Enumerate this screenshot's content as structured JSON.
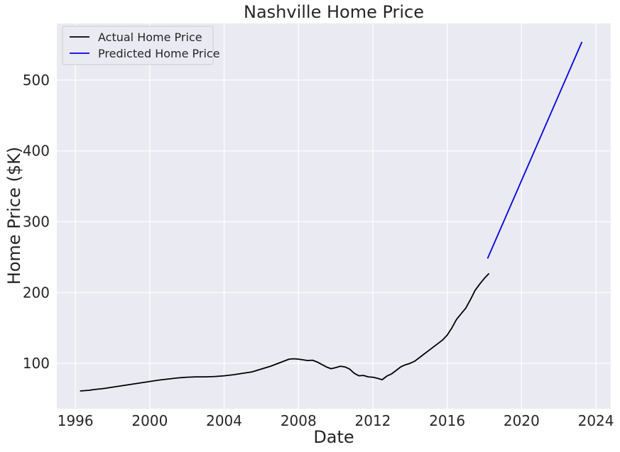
{
  "chart_data": {
    "type": "line",
    "title": "Nashville Home Price",
    "xlabel": "Date",
    "ylabel": "Home Price ($K)",
    "xlim": [
      1995.0,
      2024.8
    ],
    "ylim": [
      36,
      580
    ],
    "xticks": [
      1996,
      2000,
      2004,
      2008,
      2012,
      2016,
      2020,
      2024
    ],
    "yticks": [
      100,
      200,
      300,
      400,
      500
    ],
    "grid": true,
    "legend_position": "top-left",
    "series": [
      {
        "name": "Actual Home Price",
        "color": "#000000",
        "x": [
          1996.25,
          1996.75,
          1997.0,
          1997.5,
          1998.0,
          1998.5,
          1999.0,
          1999.5,
          2000.0,
          2000.5,
          2001.0,
          2001.5,
          2002.0,
          2002.5,
          2003.0,
          2003.5,
          2004.0,
          2004.5,
          2005.0,
          2005.5,
          2006.0,
          2006.5,
          2007.0,
          2007.5,
          2007.75,
          2008.0,
          2008.5,
          2008.75,
          2009.0,
          2009.5,
          2009.75,
          2010.0,
          2010.25,
          2010.5,
          2010.75,
          2011.0,
          2011.25,
          2011.5,
          2011.75,
          2012.0,
          2012.25,
          2012.5,
          2012.75,
          2013.0,
          2013.25,
          2013.5,
          2013.75,
          2014.0,
          2014.25,
          2014.5,
          2014.75,
          2015.0,
          2015.25,
          2015.5,
          2015.75,
          2016.0,
          2016.25,
          2016.5,
          2016.75,
          2017.0,
          2017.25,
          2017.5,
          2017.75,
          2018.0,
          2018.25
        ],
        "values": [
          61,
          62,
          63,
          64.5,
          66.5,
          68.5,
          70.5,
          72.5,
          74.5,
          76.5,
          78,
          79.5,
          80.5,
          81,
          81,
          81.5,
          82.5,
          84,
          86,
          88,
          92,
          96,
          101,
          106,
          106.5,
          106,
          104,
          104.5,
          102,
          95,
          92.5,
          94,
          96,
          95,
          92,
          86,
          82.5,
          83,
          81,
          80.5,
          79,
          77,
          82,
          85,
          90,
          95,
          98,
          100,
          103,
          108,
          113,
          118,
          123,
          128,
          133,
          140,
          150,
          162,
          170,
          178,
          190,
          203,
          212,
          220,
          227
        ]
      },
      {
        "name": "Predicted Home Price",
        "color": "#0000dd",
        "x": [
          2018.17,
          2023.25
        ],
        "values": [
          248,
          554
        ]
      }
    ]
  }
}
